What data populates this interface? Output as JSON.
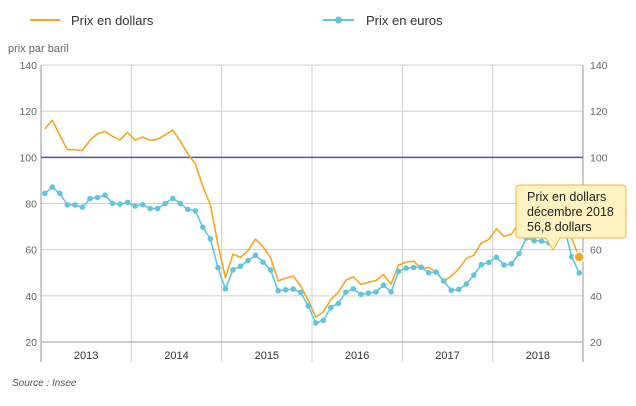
{
  "chart_data": {
    "type": "line",
    "ylabel": "prix par baril",
    "ylim": [
      20,
      140
    ],
    "yticks": [
      20,
      40,
      60,
      80,
      100,
      120,
      140
    ],
    "reference_line": 100,
    "x_start_month": "2013-01",
    "years": [
      "2013",
      "2014",
      "2015",
      "2016",
      "2017",
      "2018"
    ],
    "series": [
      {
        "name": "Prix en dollars",
        "color": "#f5a623",
        "markers": false,
        "values": [
          112.3,
          116.1,
          109.5,
          103.3,
          103.3,
          102.9,
          107.4,
          110.2,
          111.2,
          109.1,
          107.6,
          110.8,
          107.4,
          108.8,
          107.4,
          107.8,
          109.7,
          111.8,
          107.0,
          101.6,
          97.1,
          87.4,
          79.4,
          62.3,
          47.8,
          58.1,
          56.6,
          59.5,
          64.6,
          61.3,
          56.5,
          46.5,
          47.6,
          48.6,
          44.3,
          38.0,
          30.8,
          33.0,
          38.4,
          41.5,
          46.8,
          48.2,
          44.9,
          45.9,
          46.6,
          49.3,
          45.1,
          53.3,
          54.6,
          55.0,
          51.9,
          52.3,
          50.3,
          46.4,
          48.5,
          51.7,
          56.2,
          57.6,
          62.9,
          64.4,
          69.1,
          65.7,
          66.7,
          71.7,
          76.9,
          74.4,
          74.3,
          72.6,
          78.9,
          81.0,
          64.8,
          56.8
        ]
      },
      {
        "name": "Prix en euros",
        "color": "#63c5dc",
        "markers": true,
        "values": [
          84.4,
          87.1,
          84.4,
          79.4,
          79.4,
          78.4,
          82.1,
          82.6,
          83.6,
          80.1,
          79.7,
          80.5,
          78.9,
          79.5,
          77.8,
          77.8,
          80.0,
          82.2,
          80.0,
          77.4,
          76.8,
          69.7,
          64.7,
          52.2,
          43.0,
          51.3,
          52.8,
          55.3,
          57.6,
          54.6,
          51.2,
          42.2,
          42.6,
          42.9,
          41.5,
          35.6,
          28.2,
          29.4,
          34.9,
          36.7,
          41.6,
          43.0,
          40.6,
          41.2,
          41.7,
          44.6,
          41.7,
          50.6,
          52.0,
          52.3,
          52.4,
          50.0,
          50.3,
          46.4,
          42.4,
          42.8,
          45.1,
          49.0,
          53.5,
          54.5,
          56.7,
          53.4,
          53.9,
          58.3,
          65.1,
          63.9,
          63.7,
          62.9,
          67.5,
          69.8,
          56.9,
          49.9
        ]
      }
    ],
    "annotation": {
      "series": "Prix en dollars",
      "line1": "Prix en dollars",
      "line2": "décembre 2018",
      "line3": "56,8 dollars"
    },
    "source": "Source : Insee"
  },
  "colors": {
    "dollars": "#f5a623",
    "euros": "#63c5dc",
    "reference": "#5b4fa8",
    "grid": "#cfcfcf",
    "tooltip_bg": "#fff3c2",
    "tooltip_border": "#f5b342"
  }
}
